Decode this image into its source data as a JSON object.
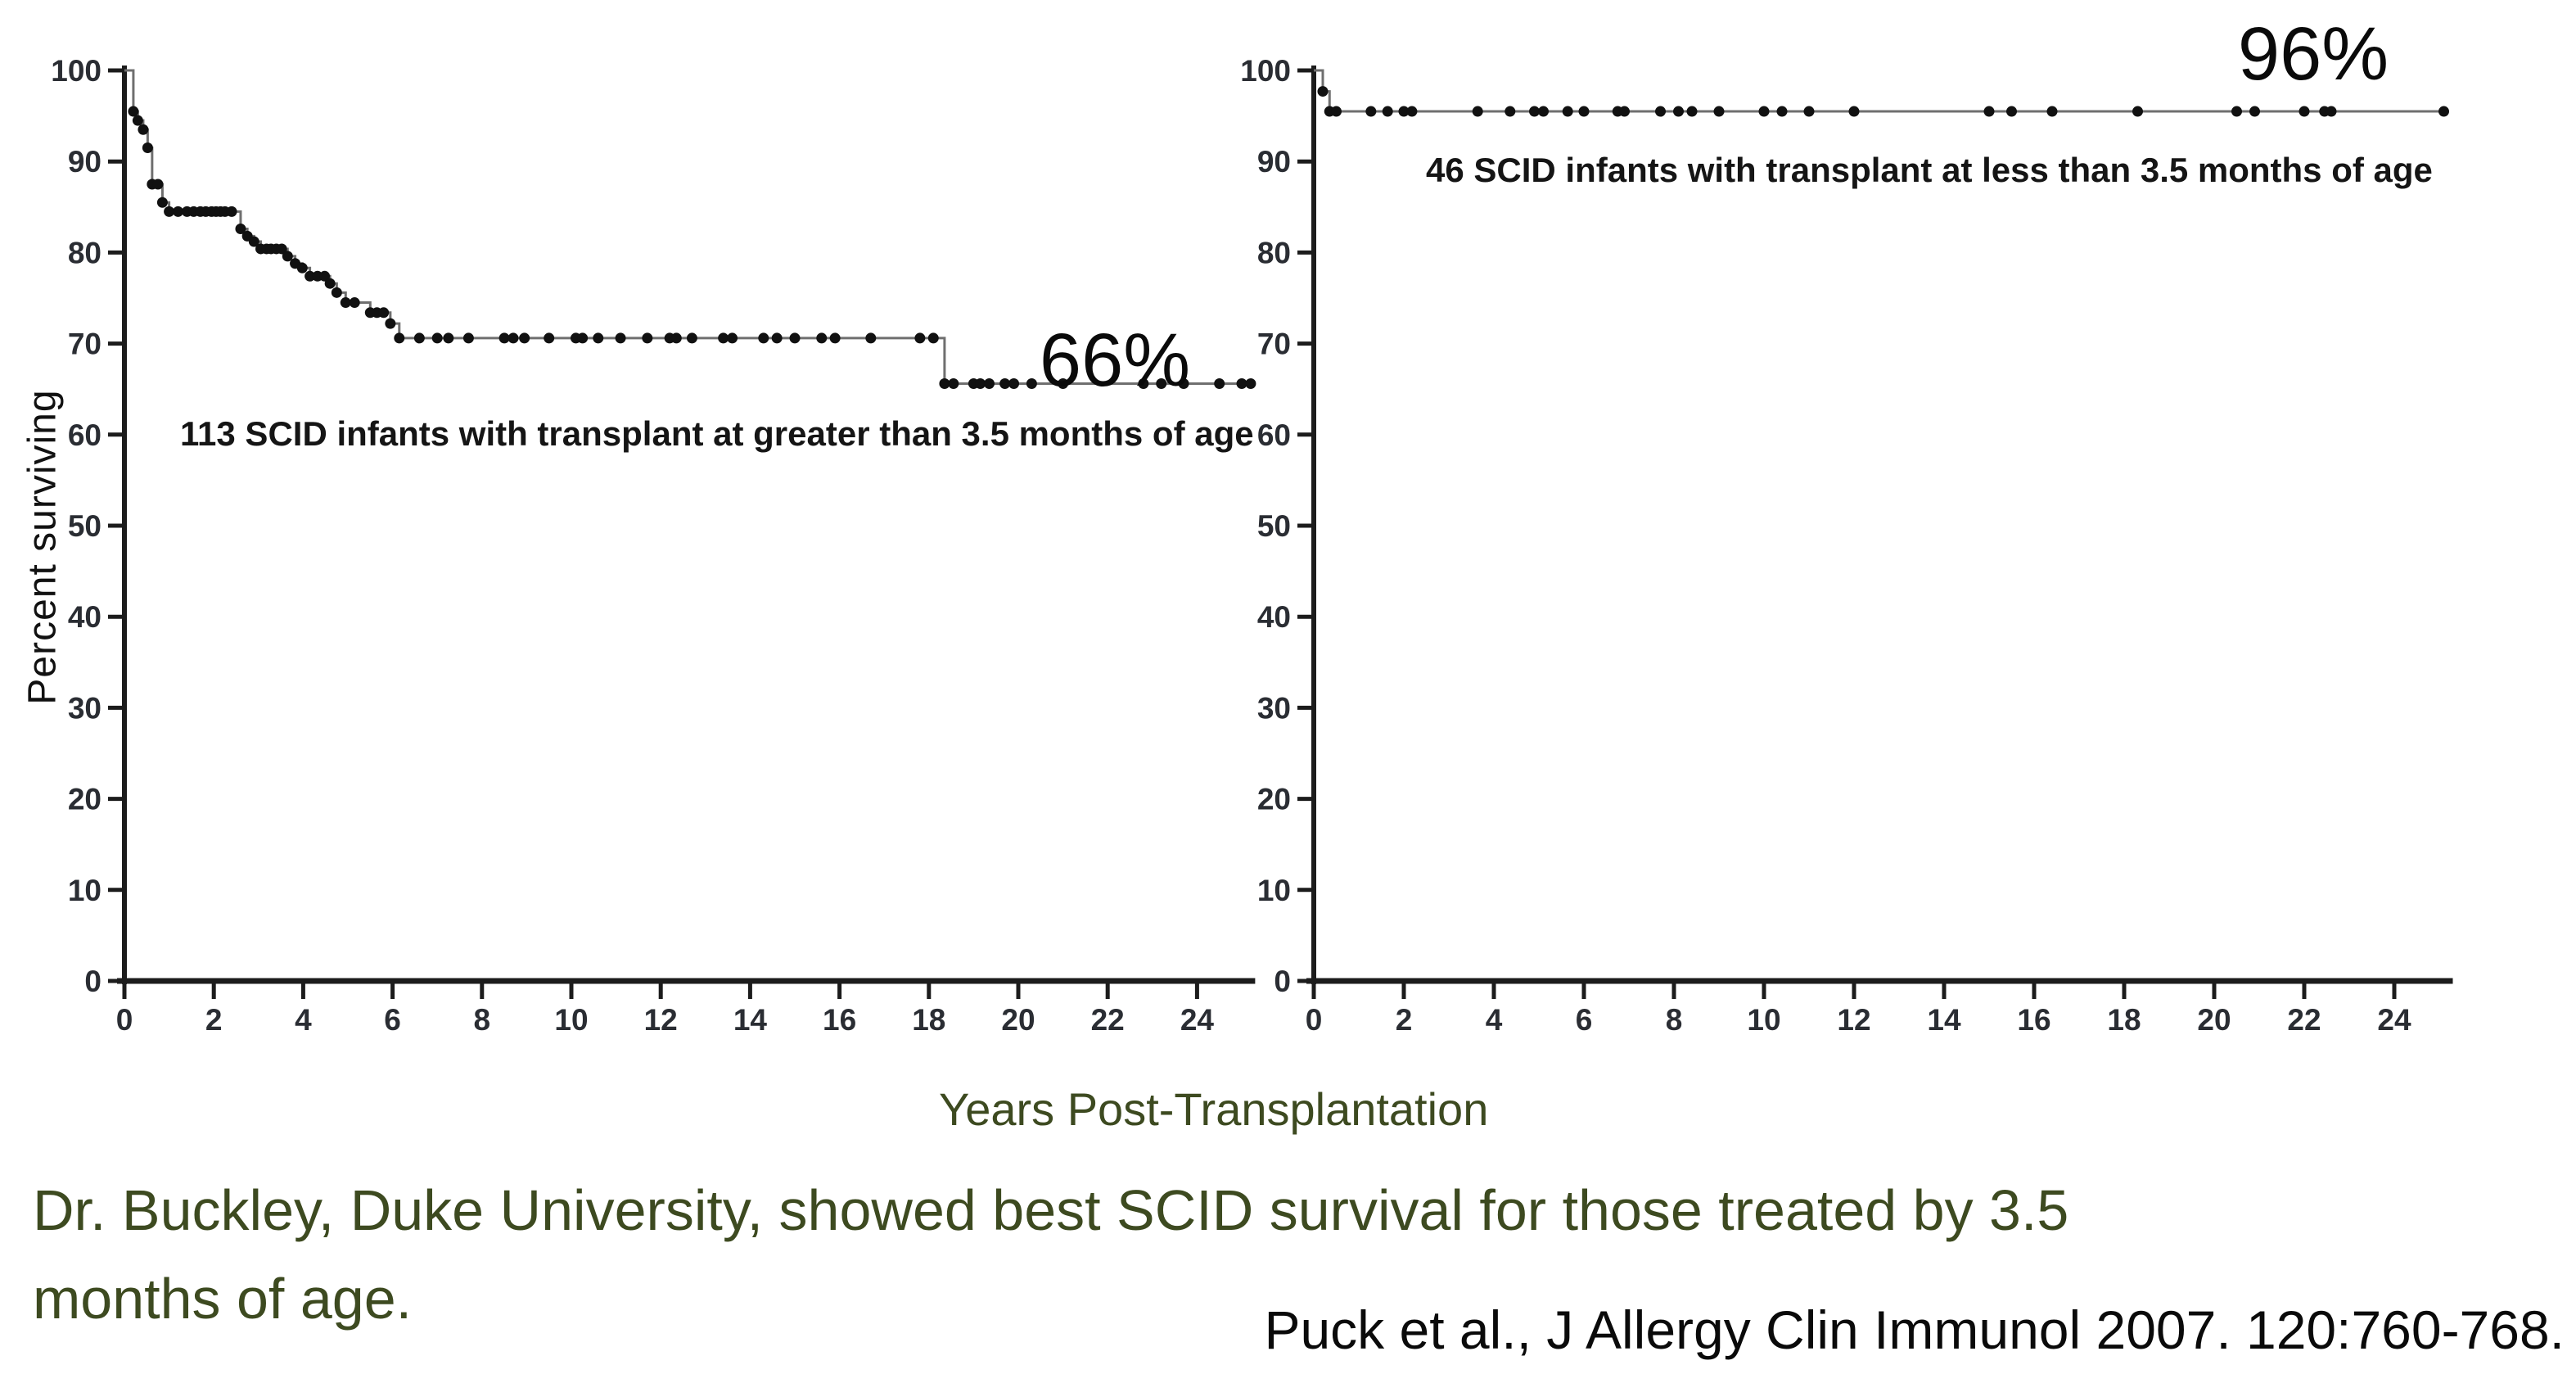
{
  "figure": {
    "ylabel": "Percent surviving",
    "xlabel": "Years Post-Transplantation"
  },
  "caption": {
    "line1": "Dr. Buckley, Duke University, showed best SCID survival for those treated by 3.5",
    "line2": "months of age.",
    "citation": "Puck et al., J Allergy Clin Immunol 2007. 120:760-768."
  },
  "colors": {
    "accent_text": "#3d4a20",
    "curve_line": "#6f6f6f",
    "marker": "#111111",
    "axis": "#1c1c1c",
    "tick_label": "#2a2d33"
  },
  "chart_data": [
    {
      "type": "line",
      "variant": "kaplan-meier-step",
      "name": "transplant-after-3.5-months",
      "annotation": "113 SCID infants with transplant at greater than 3.5 months of age",
      "final_label": "66%",
      "n": 113,
      "xlabel": "Years Post-Transplantation",
      "ylabel": "Percent surviving",
      "xlim": [
        0,
        25.3
      ],
      "ylim": [
        0,
        100
      ],
      "xticks": [
        0,
        2,
        4,
        6,
        8,
        10,
        12,
        14,
        16,
        18,
        20,
        22,
        24
      ],
      "yticks": [
        0,
        10,
        20,
        30,
        40,
        50,
        60,
        70,
        80,
        90,
        100
      ],
      "grid": false,
      "steps": [
        [
          0,
          100
        ],
        [
          0.2,
          95.5
        ],
        [
          0.3,
          94.5
        ],
        [
          0.42,
          93.5
        ],
        [
          0.52,
          91.5
        ],
        [
          0.62,
          87.5
        ],
        [
          0.85,
          85.5
        ],
        [
          1.0,
          84.5
        ],
        [
          2.6,
          82.6
        ],
        [
          2.75,
          81.8
        ],
        [
          2.9,
          81.2
        ],
        [
          3.05,
          80.4
        ],
        [
          3.65,
          79.6
        ],
        [
          3.82,
          78.8
        ],
        [
          3.98,
          78.3
        ],
        [
          4.15,
          77.4
        ],
        [
          4.6,
          76.6
        ],
        [
          4.75,
          75.6
        ],
        [
          4.95,
          74.5
        ],
        [
          5.5,
          73.4
        ],
        [
          5.95,
          72.2
        ],
        [
          6.15,
          70.6
        ],
        [
          18.35,
          65.6
        ],
        [
          25.3,
          65.6
        ]
      ],
      "markers": [
        [
          0.2,
          95.5
        ],
        [
          0.3,
          94.5
        ],
        [
          0.42,
          93.5
        ],
        [
          0.52,
          91.5
        ],
        [
          0.62,
          87.5
        ],
        [
          0.75,
          87.5
        ],
        [
          0.85,
          85.5
        ],
        [
          1.0,
          84.5
        ],
        [
          1.2,
          84.5
        ],
        [
          1.4,
          84.5
        ],
        [
          1.55,
          84.5
        ],
        [
          1.7,
          84.5
        ],
        [
          1.82,
          84.5
        ],
        [
          1.95,
          84.5
        ],
        [
          2.05,
          84.5
        ],
        [
          2.15,
          84.5
        ],
        [
          2.25,
          84.5
        ],
        [
          2.4,
          84.5
        ],
        [
          2.6,
          82.6
        ],
        [
          2.75,
          81.8
        ],
        [
          2.9,
          81.2
        ],
        [
          3.05,
          80.4
        ],
        [
          3.18,
          80.4
        ],
        [
          3.28,
          80.4
        ],
        [
          3.4,
          80.4
        ],
        [
          3.52,
          80.4
        ],
        [
          3.65,
          79.6
        ],
        [
          3.82,
          78.8
        ],
        [
          3.98,
          78.3
        ],
        [
          4.15,
          77.4
        ],
        [
          4.32,
          77.4
        ],
        [
          4.48,
          77.4
        ],
        [
          4.6,
          76.6
        ],
        [
          4.75,
          75.6
        ],
        [
          4.95,
          74.5
        ],
        [
          5.15,
          74.5
        ],
        [
          5.5,
          73.4
        ],
        [
          5.65,
          73.4
        ],
        [
          5.8,
          73.4
        ],
        [
          5.95,
          72.2
        ],
        [
          6.15,
          70.6
        ],
        [
          6.6,
          70.6
        ],
        [
          7.0,
          70.6
        ],
        [
          7.25,
          70.6
        ],
        [
          7.7,
          70.6
        ],
        [
          8.5,
          70.6
        ],
        [
          8.7,
          70.6
        ],
        [
          8.95,
          70.6
        ],
        [
          9.5,
          70.6
        ],
        [
          10.1,
          70.6
        ],
        [
          10.25,
          70.6
        ],
        [
          10.6,
          70.6
        ],
        [
          11.1,
          70.6
        ],
        [
          11.7,
          70.6
        ],
        [
          12.2,
          70.6
        ],
        [
          12.35,
          70.6
        ],
        [
          12.7,
          70.6
        ],
        [
          13.4,
          70.6
        ],
        [
          13.6,
          70.6
        ],
        [
          14.3,
          70.6
        ],
        [
          14.6,
          70.6
        ],
        [
          15.0,
          70.6
        ],
        [
          15.6,
          70.6
        ],
        [
          15.9,
          70.6
        ],
        [
          16.7,
          70.6
        ],
        [
          17.8,
          70.6
        ],
        [
          18.1,
          70.6
        ],
        [
          18.35,
          65.6
        ],
        [
          18.55,
          65.6
        ],
        [
          19.0,
          65.6
        ],
        [
          19.15,
          65.6
        ],
        [
          19.35,
          65.6
        ],
        [
          19.7,
          65.6
        ],
        [
          19.9,
          65.6
        ],
        [
          20.3,
          65.6
        ],
        [
          21.0,
          65.6
        ],
        [
          22.8,
          65.6
        ],
        [
          23.2,
          65.6
        ],
        [
          23.7,
          65.6
        ],
        [
          24.5,
          65.6
        ],
        [
          25.0,
          65.6
        ],
        [
          25.2,
          65.6
        ]
      ]
    },
    {
      "type": "line",
      "variant": "kaplan-meier-step",
      "name": "transplant-before-3.5-months",
      "annotation": "46 SCID infants with transplant at less than 3.5 months of age",
      "final_label": "96%",
      "n": 46,
      "xlabel": "Years Post-Transplantation",
      "ylabel": "Percent surviving",
      "xlim": [
        0,
        25.3
      ],
      "ylim": [
        0,
        100
      ],
      "xticks": [
        0,
        2,
        4,
        6,
        8,
        10,
        12,
        14,
        16,
        18,
        20,
        22,
        24
      ],
      "yticks": [
        0,
        10,
        20,
        30,
        40,
        50,
        60,
        70,
        80,
        90,
        100
      ],
      "grid": false,
      "steps": [
        [
          0,
          100
        ],
        [
          0.2,
          97.7
        ],
        [
          0.35,
          95.5
        ],
        [
          25.2,
          95.5
        ]
      ],
      "markers": [
        [
          0.2,
          97.7
        ],
        [
          0.35,
          95.5
        ],
        [
          0.5,
          95.5
        ],
        [
          1.27,
          95.5
        ],
        [
          1.64,
          95.5
        ],
        [
          2.0,
          95.5
        ],
        [
          2.18,
          95.5
        ],
        [
          3.64,
          95.5
        ],
        [
          4.36,
          95.5
        ],
        [
          4.9,
          95.5
        ],
        [
          5.1,
          95.5
        ],
        [
          5.64,
          95.5
        ],
        [
          6.0,
          95.5
        ],
        [
          6.75,
          95.5
        ],
        [
          6.9,
          95.5
        ],
        [
          7.7,
          95.5
        ],
        [
          8.1,
          95.5
        ],
        [
          8.4,
          95.5
        ],
        [
          9.0,
          95.5
        ],
        [
          10.0,
          95.5
        ],
        [
          10.4,
          95.5
        ],
        [
          11.0,
          95.5
        ],
        [
          12.0,
          95.5
        ],
        [
          15.0,
          95.5
        ],
        [
          15.5,
          95.5
        ],
        [
          16.4,
          95.5
        ],
        [
          18.3,
          95.5
        ],
        [
          20.5,
          95.5
        ],
        [
          20.9,
          95.5
        ],
        [
          22.0,
          95.5
        ],
        [
          22.45,
          95.5
        ],
        [
          22.6,
          95.5
        ],
        [
          25.1,
          95.5
        ]
      ]
    }
  ]
}
